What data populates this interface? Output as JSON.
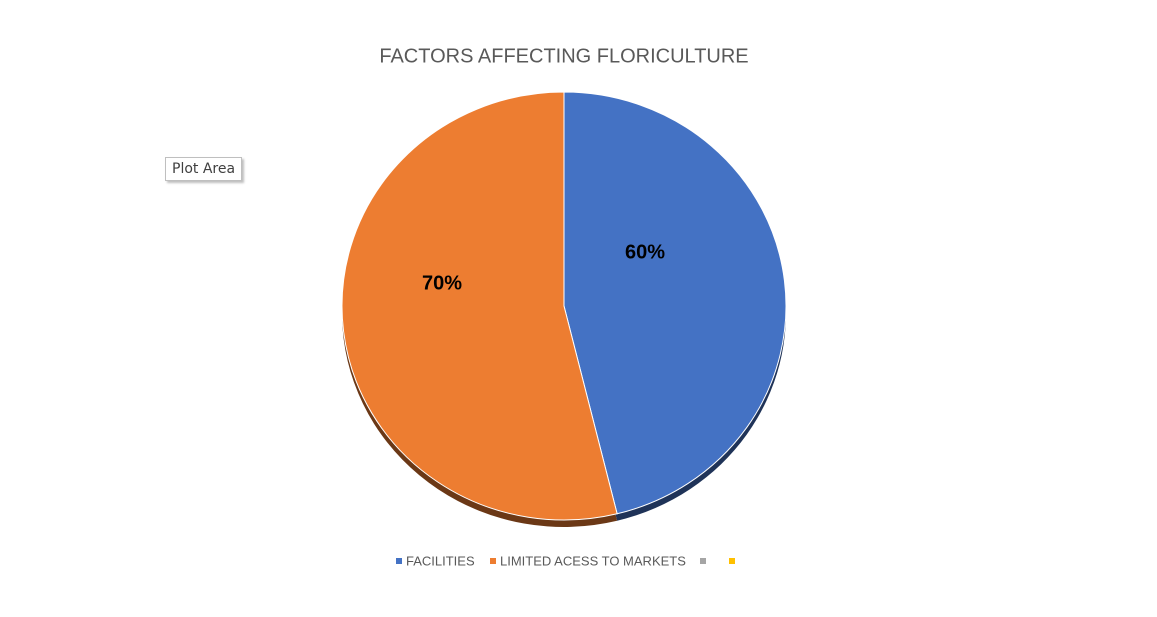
{
  "tooltip": "Plot Area",
  "chart_data": {
    "type": "pie",
    "title": "FACTORS AFFECTING FLORICULTURE",
    "categories": [
      "FACILITIES",
      "LIMITED ACESS TO MARKETS",
      null,
      null
    ],
    "values": [
      60,
      70,
      0,
      0
    ],
    "value_labels": [
      "60%",
      "70%",
      null,
      null
    ],
    "colors": [
      "#4472c4",
      "#ed7d31",
      "#a5a5a5",
      "#ffc000"
    ],
    "legend": "bottom"
  }
}
